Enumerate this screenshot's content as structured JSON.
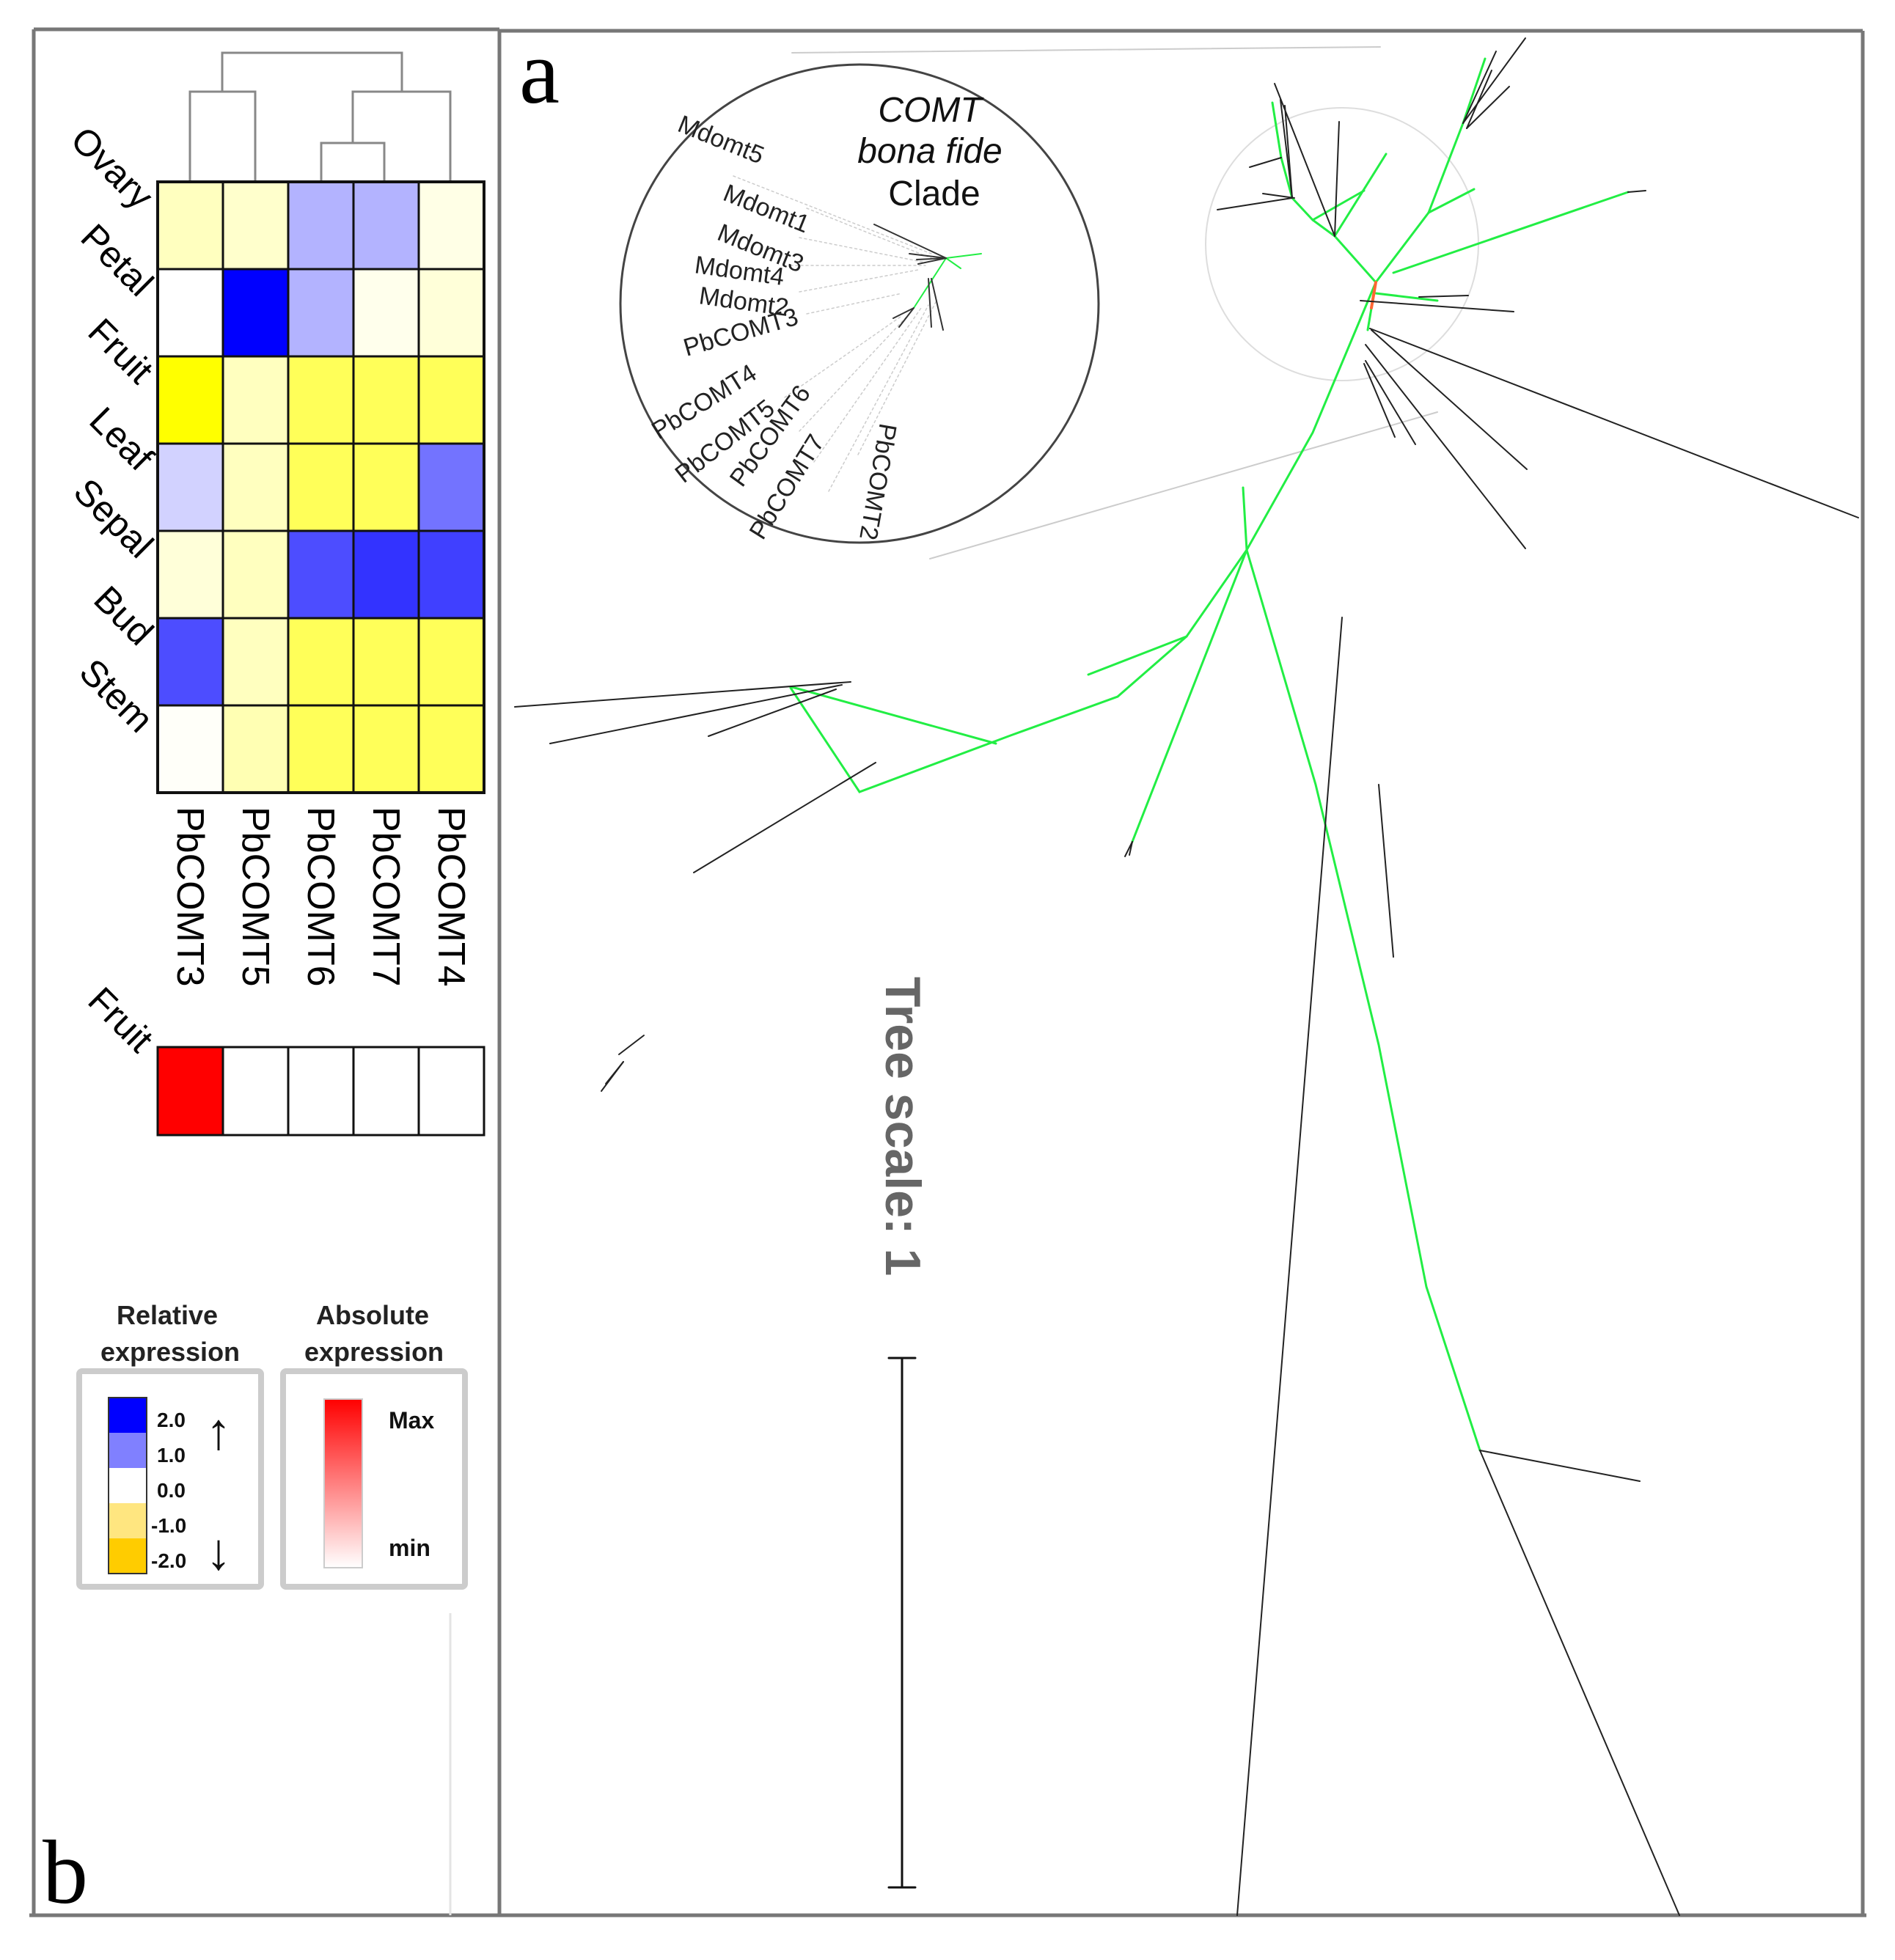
{
  "panels": {
    "tree_label": "a",
    "heatmap_label": "b"
  },
  "heatmap": {
    "rows": [
      "Ovary",
      "Petal",
      "Fruit",
      "Leaf",
      "Sepal",
      "Bud",
      "Stem"
    ],
    "columns": [
      "PbCOMT3",
      "PbCOMT5",
      "PbCOMT6",
      "PbCOMT7",
      "PbCOMT4"
    ],
    "relative_values": [
      [
        -0.5,
        -0.4,
        0.6,
        0.6,
        -0.2
      ],
      [
        0.0,
        2.0,
        0.6,
        -0.15,
        -0.3
      ],
      [
        -2.0,
        -0.5,
        -1.3,
        -1.3,
        -1.3
      ],
      [
        0.35,
        -0.5,
        -1.3,
        -1.3,
        1.1
      ],
      [
        -0.3,
        -0.5,
        1.4,
        1.6,
        1.5
      ],
      [
        1.4,
        -0.5,
        -1.3,
        -1.3,
        -1.3
      ],
      [
        -0.05,
        -0.6,
        -1.3,
        -1.3,
        -1.3
      ]
    ],
    "absolute_row_label": "Fruit",
    "absolute_values": [
      1.0,
      0.0,
      0.0,
      0.0,
      0.0
    ]
  },
  "legend": {
    "relative": {
      "title": [
        "Relative",
        "expression"
      ],
      "ticks": [
        "2.0",
        "1.0",
        "0.0",
        "-1.0",
        "-2.0"
      ],
      "colors": [
        "#0000ff",
        "#8080ff",
        "#ffffff",
        "#ffe680",
        "#ffcc00"
      ],
      "arrow_up": "↑",
      "arrow_down": "↓"
    },
    "absolute": {
      "title": [
        "Absolute",
        "expression"
      ],
      "max_label": "Max",
      "min_label": "min",
      "max_color": "#ff0000"
    }
  },
  "tree": {
    "clade_title": [
      "COMT",
      "bona fide",
      "Clade"
    ],
    "inset_labels": [
      "Mdomt5",
      "Mdomt1",
      "Mdomt3",
      "Mdomt4",
      "Mdomt2",
      "PbCOMT3",
      "PbCOMT4",
      "PbCOMT5",
      "PbCOMT6",
      "PbCOMT7",
      "PbCOMT2"
    ],
    "scale_label": "Tree scale: 1",
    "scale_value": 1,
    "colors": {
      "clade_branch": "#22ee44",
      "other_branch": "#222222",
      "root_branch": "#ff6633"
    }
  }
}
